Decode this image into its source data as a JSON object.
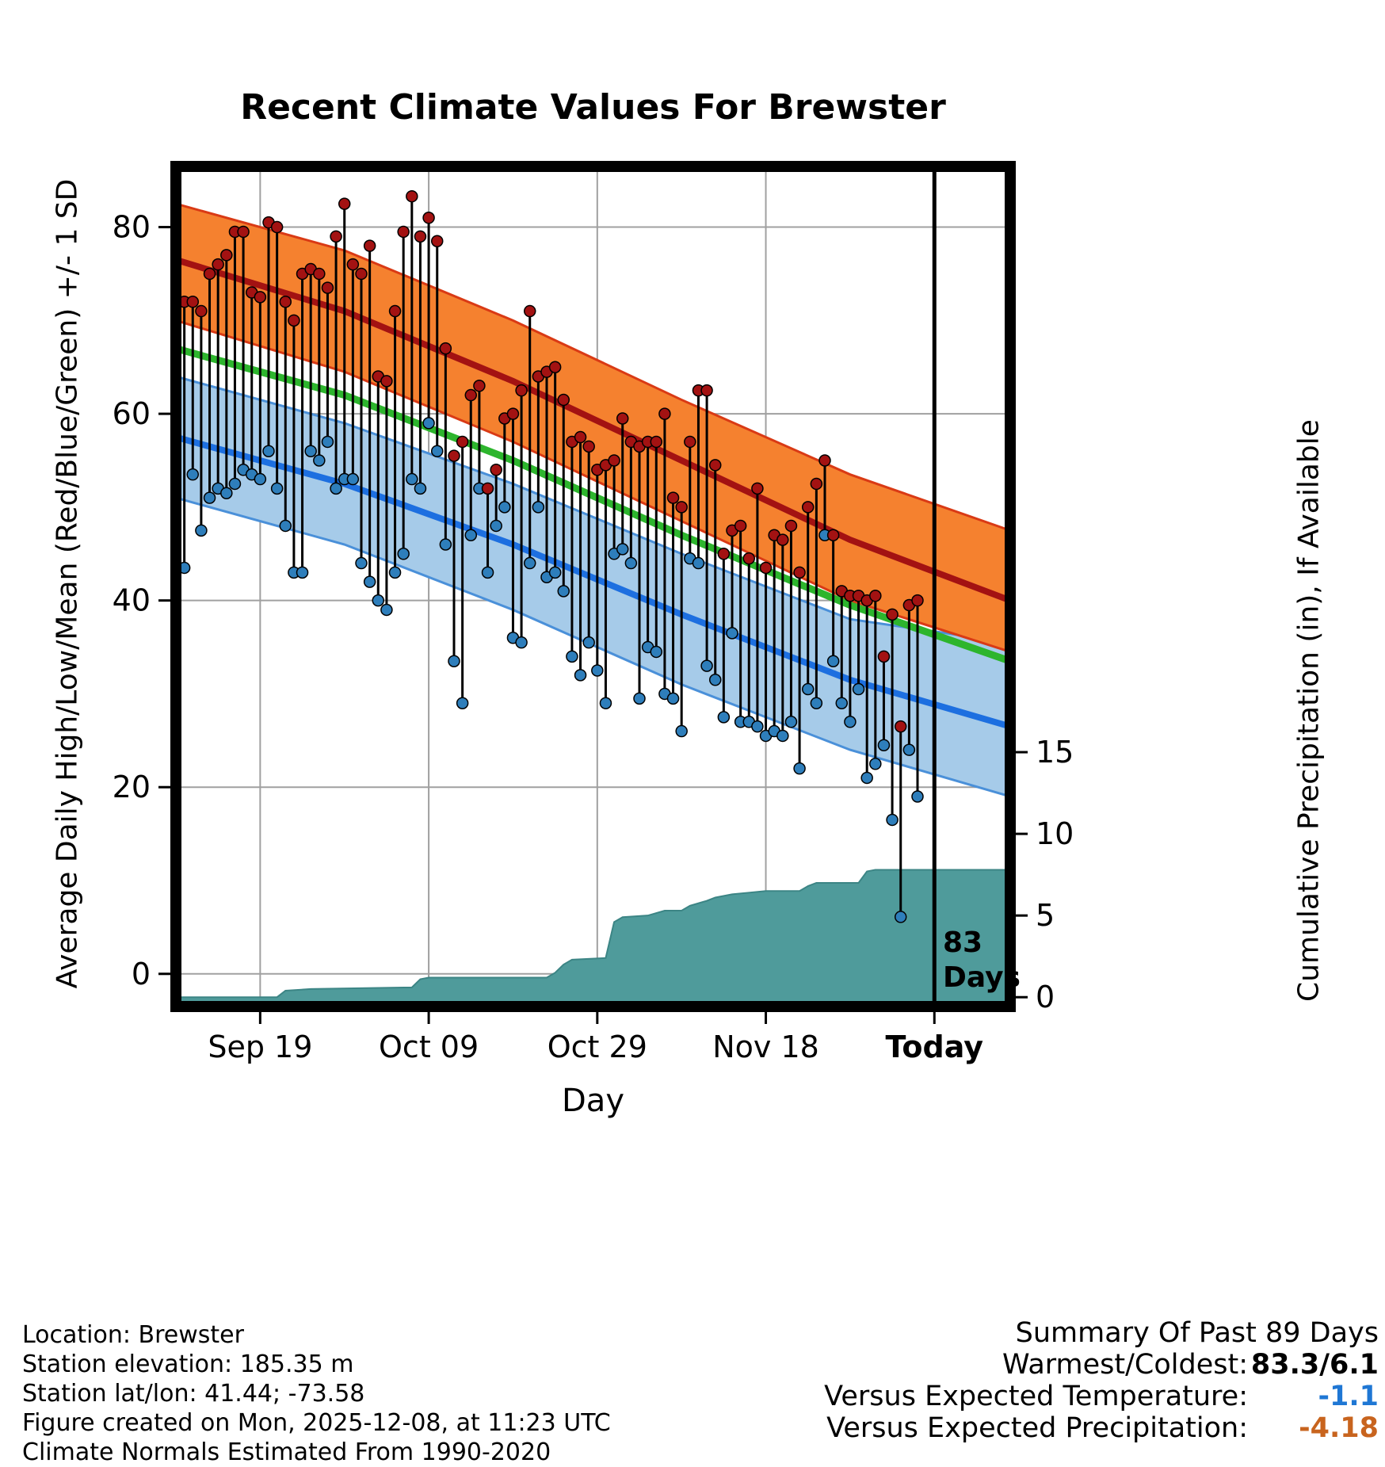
{
  "annotation": {
    "days": "83",
    "label": "Days"
  },
  "footer": {
    "location": "Location: Brewster",
    "elevation": "Station elevation: 185.35 m",
    "latlon": "Station lat/lon: 41.44; -73.58",
    "created": "Figure created on Mon, 2025-12-08, at 11:23 UTC",
    "normals": "Climate Normals Estimated From 1990-2020"
  },
  "summary": {
    "title": "Summary Of Past 89 Days",
    "warmest_label": "Warmest/Coldest:",
    "warmest_value": "83.3/6.1",
    "vs_temp_label": "Versus Expected Temperature:",
    "vs_temp_value": "-1.1",
    "vs_precip_label": "Versus Expected Precipitation:",
    "vs_precip_value": "-4.18"
  },
  "colors": {
    "high_band": "#F5812F",
    "high_edge": "#D93A15",
    "high_line": "#A31212",
    "low_band": "#A6CBE9",
    "low_edge": "#4A90D9",
    "low_line": "#1D6FE0",
    "mean_line": "#2DB52D",
    "high_dot": "#A31212",
    "low_dot": "#2E7EBB",
    "precip": "#4F9B9B",
    "precip_edge": "#3C8585",
    "grid": "#A0A0A0",
    "today_line": "#000000"
  },
  "chart_data": {
    "type": "line",
    "subtype": "climate normals bands + daily high/low stems + cumulative precipitation area",
    "title": "Recent Climate Values For Brewster",
    "x_axis": {
      "label": "Day",
      "domain_days": [
        0,
        99
      ],
      "ticks": [
        {
          "day": 10,
          "label": "Sep 19",
          "bold": false
        },
        {
          "day": 30,
          "label": "Oct 09",
          "bold": false
        },
        {
          "day": 50,
          "label": "Oct 29",
          "bold": false
        },
        {
          "day": 70,
          "label": "Nov 18",
          "bold": false
        },
        {
          "day": 90,
          "label": "Today",
          "bold": true
        }
      ]
    },
    "y_axis_temp": {
      "label": "Average Daily High/Low/Mean (Red/Blue/Green) +/- 1 SD",
      "ticks": [
        0,
        20,
        40,
        60,
        80
      ],
      "range": [
        -3.5,
        86.5
      ]
    },
    "y_axis_precip": {
      "label": "Cumulative Precipitation (in), If Available",
      "ticks": [
        0,
        5,
        10,
        15
      ],
      "zero_deg": -2.5,
      "deg_per_inch": 1.75
    },
    "today_day": 90,
    "normals": {
      "days": [
        0,
        20,
        40,
        60,
        80,
        99
      ],
      "high_hi": [
        82.5,
        77.5,
        70,
        61.5,
        53.5,
        47.5
      ],
      "high_mean": [
        76.5,
        71,
        63.5,
        55,
        46.5,
        40
      ],
      "high_lo": [
        70,
        64.5,
        57,
        48.5,
        40,
        34.5
      ],
      "mean": [
        67,
        62,
        55,
        47,
        39.5,
        33.5
      ],
      "low_hi": [
        64,
        59,
        52.5,
        45,
        38,
        35.5
      ],
      "low_mean": [
        57.5,
        52.5,
        46,
        38.5,
        31.5,
        26.5
      ],
      "low_lo": [
        51,
        46,
        39,
        31,
        24,
        19
      ]
    },
    "daily": {
      "start_day": 1,
      "high": [
        72,
        72,
        71,
        75,
        76,
        77,
        79.5,
        79.5,
        73,
        72.5,
        80.5,
        80,
        72,
        70,
        75,
        75.5,
        75,
        73.5,
        79,
        82.5,
        76,
        75,
        78,
        64,
        63.5,
        71,
        79.5,
        83.3,
        79,
        81,
        78.5,
        67,
        55.5,
        57,
        62,
        63,
        52,
        54,
        59.5,
        60,
        62.5,
        71,
        64,
        64.5,
        65,
        61.5,
        57,
        57.5,
        56.5,
        54,
        54.5,
        55,
        59.5,
        57,
        56.5,
        57,
        57,
        60,
        51,
        50,
        57,
        62.5,
        62.5,
        54.5,
        45,
        47.5,
        48,
        44.5,
        52,
        43.5,
        47,
        46.5,
        48,
        43,
        50,
        52.5,
        55,
        47,
        41,
        40.5,
        40.5,
        40,
        40.5,
        34,
        38.5,
        26.5,
        39.5,
        40
      ],
      "low": [
        43.5,
        53.5,
        47.5,
        51,
        52,
        51.5,
        52.5,
        54,
        53.5,
        53,
        56,
        52,
        48,
        43,
        43,
        56,
        55,
        57,
        52,
        53,
        53,
        44,
        42,
        40,
        39,
        43,
        45,
        53,
        52,
        59,
        56,
        46,
        33.5,
        29,
        47,
        52,
        43,
        48,
        50,
        36,
        35.5,
        44,
        50,
        42.5,
        43,
        41,
        34,
        32,
        35.5,
        32.5,
        29,
        45,
        45.5,
        44,
        29.5,
        35,
        34.5,
        30,
        29.5,
        26,
        44.5,
        44,
        33,
        31.5,
        27.5,
        36.5,
        27,
        27,
        26.5,
        25.5,
        26,
        25.5,
        27,
        22,
        30.5,
        29,
        47,
        33.5,
        29,
        27,
        30.5,
        21,
        22.5,
        24.5,
        16.5,
        6.1,
        24,
        19
      ]
    },
    "precip_cumulative": {
      "days": [
        0,
        12,
        13,
        16,
        28,
        29,
        30,
        44,
        45,
        46,
        47,
        51,
        52,
        53,
        56,
        58,
        60,
        61,
        63,
        64,
        66,
        68,
        70,
        74,
        75,
        76,
        81,
        82,
        83,
        99
      ],
      "values": [
        0,
        0,
        0.4,
        0.5,
        0.6,
        1.1,
        1.2,
        1.2,
        1.5,
        2.0,
        2.3,
        2.4,
        4.6,
        4.9,
        5.0,
        5.3,
        5.3,
        5.6,
        5.9,
        6.1,
        6.3,
        6.4,
        6.5,
        6.5,
        6.8,
        7.0,
        7.0,
        7.7,
        7.8,
        7.8
      ]
    }
  }
}
